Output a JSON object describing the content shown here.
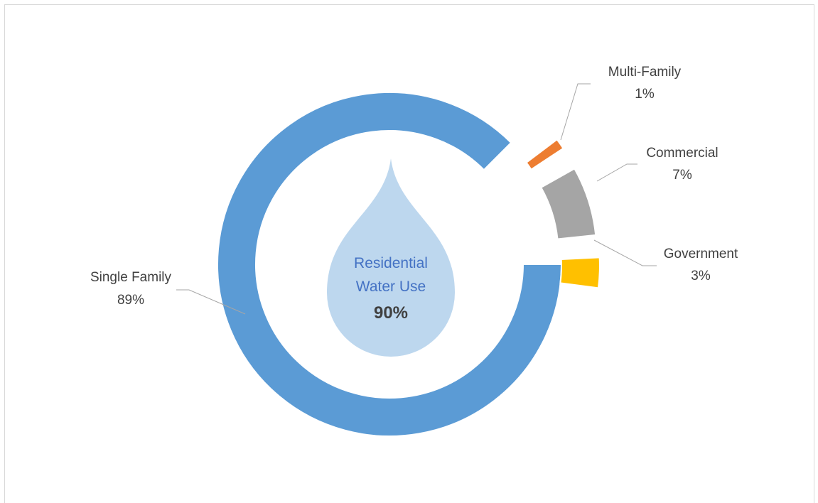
{
  "chart_data": {
    "type": "pie",
    "variant": "exploded-donut",
    "slices": [
      {
        "label": "Single Family",
        "value": 89,
        "value_label": "89%",
        "color": "#5b9bd5"
      },
      {
        "label": "Multi-Family",
        "value": 1,
        "value_label": "1%",
        "color": "#ed7d31"
      },
      {
        "label": "Commercial",
        "value": 7,
        "value_label": "7%",
        "color": "#a5a5a5"
      },
      {
        "label": "Government",
        "value": 3,
        "value_label": "3%",
        "color": "#ffc000"
      }
    ],
    "center": {
      "line1": "Residential",
      "line2": "Water Use",
      "value": "90%",
      "text_color": "#4472c4",
      "drop_color": "#bdd7ee"
    }
  }
}
